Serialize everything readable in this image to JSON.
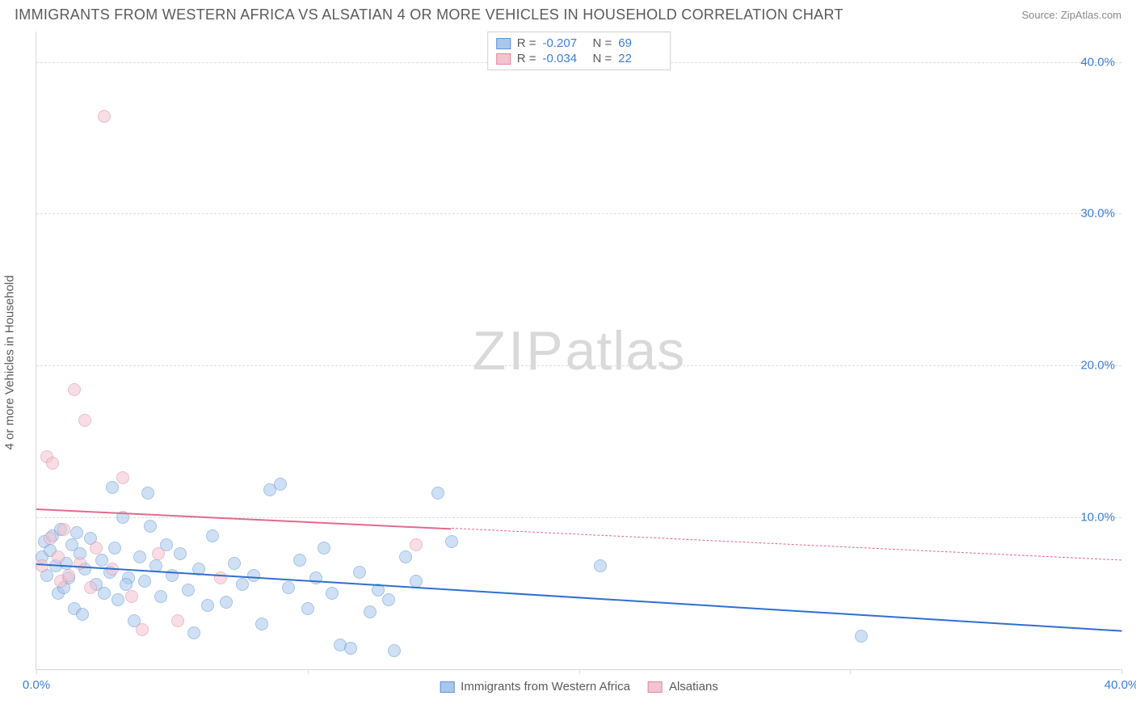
{
  "title": "IMMIGRANTS FROM WESTERN AFRICA VS ALSATIAN 4 OR MORE VEHICLES IN HOUSEHOLD CORRELATION CHART",
  "source": "Source: ZipAtlas.com",
  "watermark_zip": "ZIP",
  "watermark_atlas": "atlas",
  "ylabel": "4 or more Vehicles in Household",
  "chart": {
    "type": "scatter",
    "background_color": "#ffffff",
    "grid_color": "#dcdcdc",
    "axis_color": "#d8d8d8",
    "tick_label_color": "#3b7dd8",
    "label_color": "#5a5a5a",
    "tick_fontsize": 15,
    "label_fontsize": 15,
    "title_fontsize": 18,
    "xlim": [
      0,
      40
    ],
    "ylim": [
      0,
      42
    ],
    "xticks": [
      0,
      10,
      20,
      30,
      40
    ],
    "xtick_labels": [
      "0.0%",
      "",
      "",
      "",
      "40.0%"
    ],
    "yticks": [
      10,
      20,
      30,
      40
    ],
    "ytick_labels": [
      "10.0%",
      "20.0%",
      "30.0%",
      "40.0%"
    ],
    "marker_radius": 8,
    "marker_opacity": 0.55,
    "series": [
      {
        "name": "Immigrants from Western Africa",
        "fill": "#a9c7ec",
        "stroke": "#5b93d6",
        "r_value": "-0.207",
        "n_value": "69",
        "trend": {
          "x1": 0,
          "y1": 7.0,
          "x2": 40,
          "y2": 2.6,
          "solid_until_x": 40,
          "color": "#2f6fd0",
          "width": 2
        },
        "points": [
          [
            0.2,
            7.4
          ],
          [
            0.3,
            8.4
          ],
          [
            0.4,
            6.2
          ],
          [
            0.5,
            7.8
          ],
          [
            0.6,
            8.8
          ],
          [
            0.7,
            6.8
          ],
          [
            0.8,
            5.0
          ],
          [
            0.9,
            9.2
          ],
          [
            1.0,
            5.4
          ],
          [
            1.1,
            7.0
          ],
          [
            1.2,
            6.0
          ],
          [
            1.3,
            8.2
          ],
          [
            1.4,
            4.0
          ],
          [
            1.6,
            7.6
          ],
          [
            1.7,
            3.6
          ],
          [
            1.8,
            6.6
          ],
          [
            2.0,
            8.6
          ],
          [
            2.2,
            5.6
          ],
          [
            2.4,
            7.2
          ],
          [
            2.5,
            5.0
          ],
          [
            2.7,
            6.4
          ],
          [
            2.9,
            8.0
          ],
          [
            3.0,
            4.6
          ],
          [
            3.2,
            10.0
          ],
          [
            3.4,
            6.0
          ],
          [
            3.6,
            3.2
          ],
          [
            3.8,
            7.4
          ],
          [
            4.0,
            5.8
          ],
          [
            4.2,
            9.4
          ],
          [
            4.4,
            6.8
          ],
          [
            4.6,
            4.8
          ],
          [
            4.8,
            8.2
          ],
          [
            5.0,
            6.2
          ],
          [
            5.3,
            7.6
          ],
          [
            5.6,
            5.2
          ],
          [
            5.8,
            2.4
          ],
          [
            6.0,
            6.6
          ],
          [
            6.3,
            4.2
          ],
          [
            6.5,
            8.8
          ],
          [
            7.0,
            4.4
          ],
          [
            7.3,
            7.0
          ],
          [
            7.6,
            5.6
          ],
          [
            8.0,
            6.2
          ],
          [
            8.3,
            3.0
          ],
          [
            8.6,
            11.8
          ],
          [
            9.0,
            12.2
          ],
          [
            9.3,
            5.4
          ],
          [
            9.7,
            7.2
          ],
          [
            10.0,
            4.0
          ],
          [
            10.3,
            6.0
          ],
          [
            10.6,
            8.0
          ],
          [
            10.9,
            5.0
          ],
          [
            11.2,
            1.6
          ],
          [
            11.6,
            1.4
          ],
          [
            11.9,
            6.4
          ],
          [
            12.3,
            3.8
          ],
          [
            12.6,
            5.2
          ],
          [
            13.0,
            4.6
          ],
          [
            13.2,
            1.2
          ],
          [
            13.6,
            7.4
          ],
          [
            14.0,
            5.8
          ],
          [
            14.8,
            11.6
          ],
          [
            15.3,
            8.4
          ],
          [
            20.8,
            6.8
          ],
          [
            30.4,
            2.2
          ],
          [
            2.8,
            12.0
          ],
          [
            4.1,
            11.6
          ],
          [
            3.3,
            5.6
          ],
          [
            1.5,
            9.0
          ]
        ]
      },
      {
        "name": "Alsatians",
        "fill": "#f3c3cf",
        "stroke": "#e089a1",
        "r_value": "-0.034",
        "n_value": "22",
        "trend": {
          "x1": 0,
          "y1": 10.6,
          "x2": 40,
          "y2": 7.2,
          "solid_until_x": 15.3,
          "color": "#e26a8c",
          "width": 2
        },
        "points": [
          [
            0.2,
            6.8
          ],
          [
            0.4,
            14.0
          ],
          [
            0.5,
            8.6
          ],
          [
            0.6,
            13.6
          ],
          [
            0.8,
            7.4
          ],
          [
            0.9,
            5.8
          ],
          [
            1.0,
            9.2
          ],
          [
            1.2,
            6.2
          ],
          [
            1.4,
            18.4
          ],
          [
            1.6,
            7.0
          ],
          [
            1.8,
            16.4
          ],
          [
            2.0,
            5.4
          ],
          [
            2.2,
            8.0
          ],
          [
            2.5,
            36.4
          ],
          [
            2.8,
            6.6
          ],
          [
            3.2,
            12.6
          ],
          [
            3.5,
            4.8
          ],
          [
            3.9,
            2.6
          ],
          [
            4.5,
            7.6
          ],
          [
            5.2,
            3.2
          ],
          [
            6.8,
            6.0
          ],
          [
            14.0,
            8.2
          ]
        ]
      }
    ]
  },
  "legend_top": {
    "r_label": "R =",
    "n_label": "N ="
  },
  "legend_bottom": [
    {
      "label": "Immigrants from Western Africa",
      "fill": "#a9c7ec",
      "stroke": "#5b93d6"
    },
    {
      "label": "Alsatians",
      "fill": "#f3c3cf",
      "stroke": "#e089a1"
    }
  ]
}
